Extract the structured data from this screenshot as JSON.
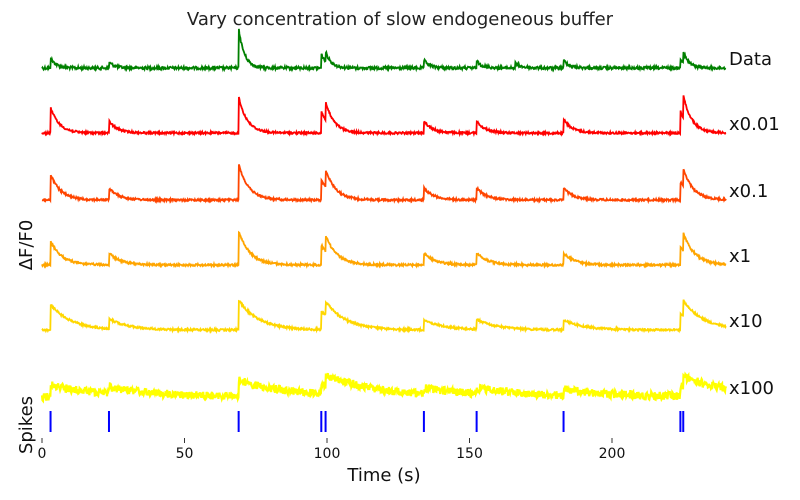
{
  "chart_data": {
    "type": "line",
    "title": "Vary concentration of slow endogeneous buffer",
    "xlabel": "Time (s)",
    "ylabel": "ΔF/F0",
    "spikes_label": "Spikes",
    "xlim": [
      0,
      240
    ],
    "x_ticks": [
      0,
      50,
      100,
      150,
      200
    ],
    "spike_times": [
      3,
      23.5,
      69,
      98,
      99.5,
      134,
      152.5,
      183,
      224,
      225
    ],
    "series": [
      {
        "name": "Data",
        "color": "#008000",
        "noise": 1.4,
        "tau": 2.0,
        "amps": [
          10,
          6,
          40,
          14,
          10,
          8,
          7,
          8,
          10
        ],
        "extra_bumps": [
          [
            166,
            5
          ]
        ]
      },
      {
        "name": "x0.01",
        "color": "#ff0000",
        "noise": 1.0,
        "tau": 3.0,
        "amps": [
          26,
          12,
          36,
          22,
          18,
          12,
          12,
          14,
          22
        ],
        "extra_bumps": []
      },
      {
        "name": "x0.1",
        "color": "#ff4500",
        "noise": 1.0,
        "tau": 3.5,
        "amps": [
          26,
          12,
          36,
          20,
          18,
          12,
          12,
          12,
          18
        ],
        "extra_bumps": []
      },
      {
        "name": "x1",
        "color": "#ffa500",
        "noise": 1.0,
        "tau": 4.0,
        "amps": [
          24,
          12,
          34,
          20,
          16,
          12,
          12,
          12,
          18
        ],
        "extra_bumps": []
      },
      {
        "name": "x10",
        "color": "#ffd700",
        "noise": 1.0,
        "tau": 7.0,
        "amps": [
          26,
          10,
          30,
          18,
          14,
          10,
          10,
          10,
          16
        ],
        "extra_bumps": []
      },
      {
        "name": "x100",
        "color": "#ffff00",
        "noise": 4.0,
        "tau": 18.0,
        "amps": [
          12,
          6,
          16,
          10,
          10,
          6,
          6,
          6,
          10
        ],
        "extra_bumps": []
      }
    ],
    "spike_color": "#0000ff"
  }
}
